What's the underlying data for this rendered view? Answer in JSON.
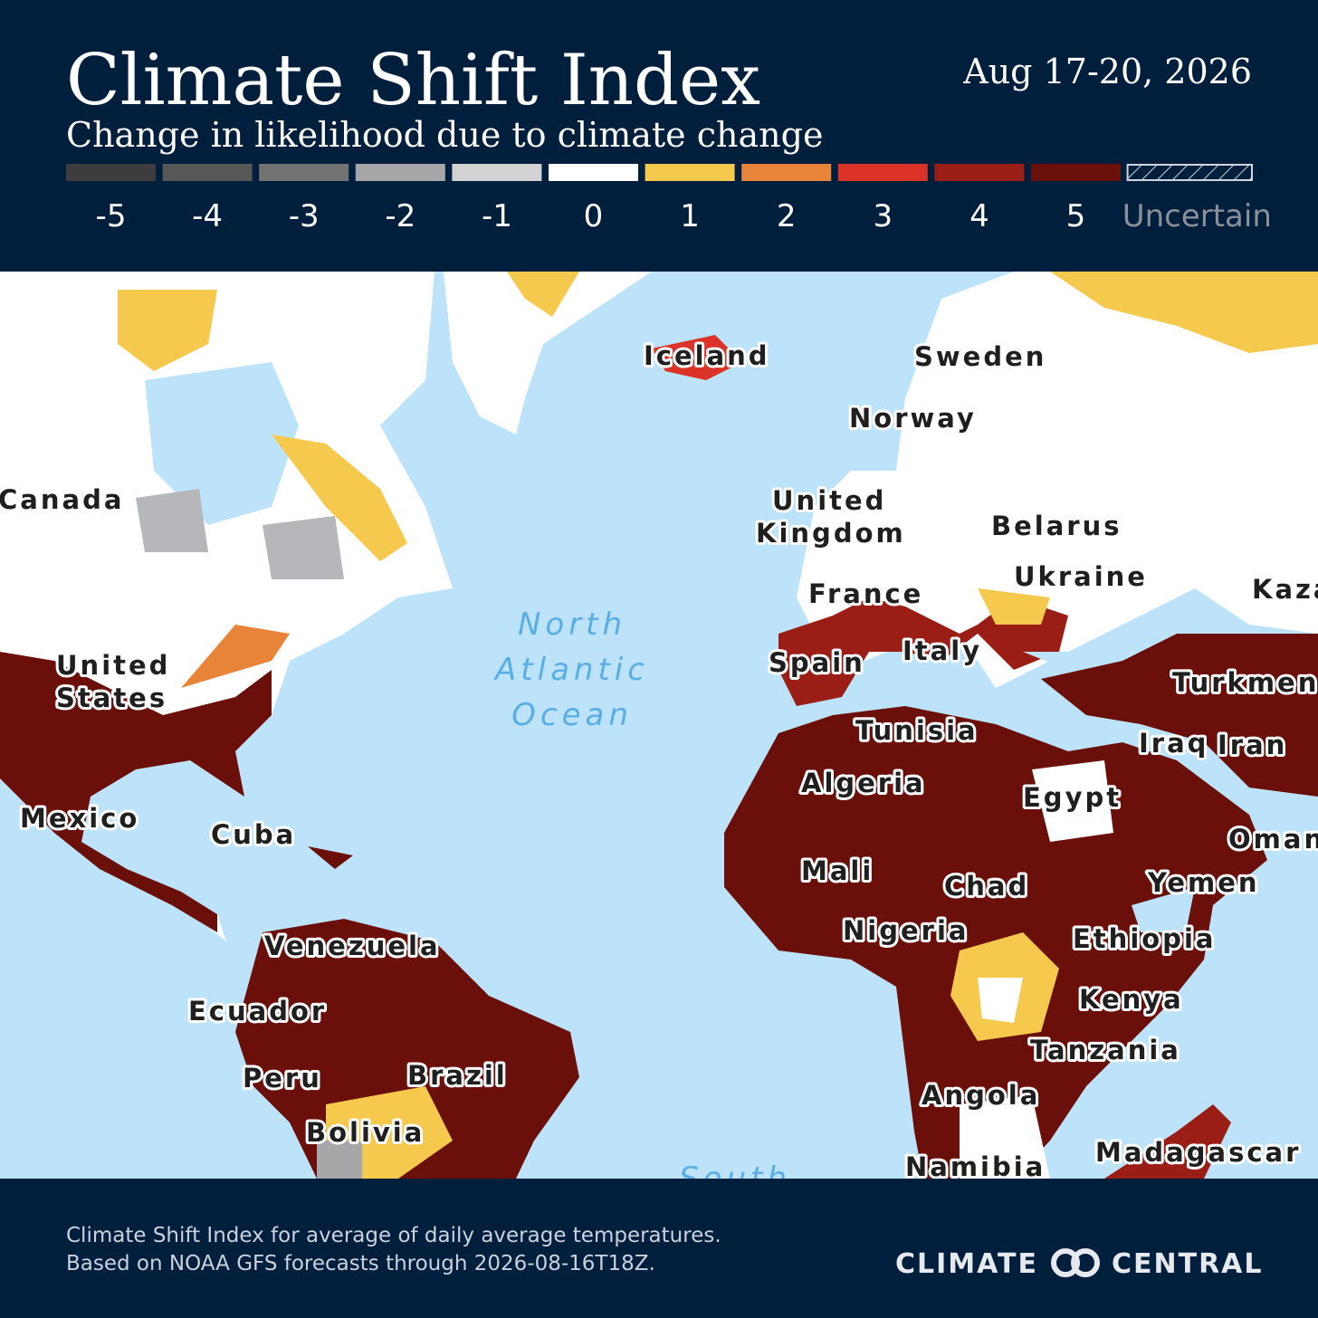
{
  "header": {
    "title": "Climate Shift Index",
    "subtitle": "Change in likelihood due to climate change",
    "date": "Aug 17-20, 2026"
  },
  "legend": {
    "items": [
      {
        "value": -5,
        "color": "#3d3d3d"
      },
      {
        "value": -4,
        "color": "#575757"
      },
      {
        "value": -3,
        "color": "#737373"
      },
      {
        "value": -2,
        "color": "#a7a7a9"
      },
      {
        "value": -1,
        "color": "#d3d3d3"
      },
      {
        "value": 0,
        "color": "#ffffff"
      },
      {
        "value": 1,
        "color": "#f5c94e"
      },
      {
        "value": 2,
        "color": "#e8833a"
      },
      {
        "value": 3,
        "color": "#db3327"
      },
      {
        "value": 4,
        "color": "#9a1e16"
      },
      {
        "value": 5,
        "color": "#6b0f0a"
      }
    ],
    "uncertain": "Uncertain"
  },
  "map": {
    "labels": [
      [
        "Canada"
      ],
      [
        "United",
        "States"
      ],
      [
        "Mexico"
      ],
      [
        "Cuba"
      ],
      [
        "Venezuela"
      ],
      [
        "Ecuador"
      ],
      [
        "Peru"
      ],
      [
        "Brazil"
      ],
      [
        "Bolivia"
      ],
      [
        "Iceland"
      ],
      [
        "Sweden"
      ],
      [
        "Norway"
      ],
      [
        "United",
        "Kingdom"
      ],
      [
        "Belarus"
      ],
      [
        "Ukraine"
      ],
      [
        "France"
      ],
      [
        "Kaza"
      ],
      [
        "Spain"
      ],
      [
        "Italy"
      ],
      [
        "Turkmen"
      ],
      [
        "Tunisia"
      ],
      [
        "Iraq"
      ],
      [
        "Iran"
      ],
      [
        "Algeria"
      ],
      [
        "Egypt"
      ],
      [
        "Oman"
      ],
      [
        "Mali"
      ],
      [
        "Chad"
      ],
      [
        "Yemen"
      ],
      [
        "Nigeria"
      ],
      [
        "Ethiopia"
      ],
      [
        "Kenya"
      ],
      [
        "Tanzania"
      ],
      [
        "Angola"
      ],
      [
        "Namibia"
      ],
      [
        "Madagascar"
      ]
    ],
    "water": [
      [
        "North",
        "Atlantic",
        "Ocean"
      ],
      [
        "South"
      ]
    ]
  },
  "footer": {
    "note": [
      "Climate Shift Index for average of daily average temperatures.",
      "Based on NOAA GFS forecasts through 2026-08-16T18Z."
    ],
    "logo": [
      "CLIMATE",
      "CENTRAL"
    ]
  }
}
